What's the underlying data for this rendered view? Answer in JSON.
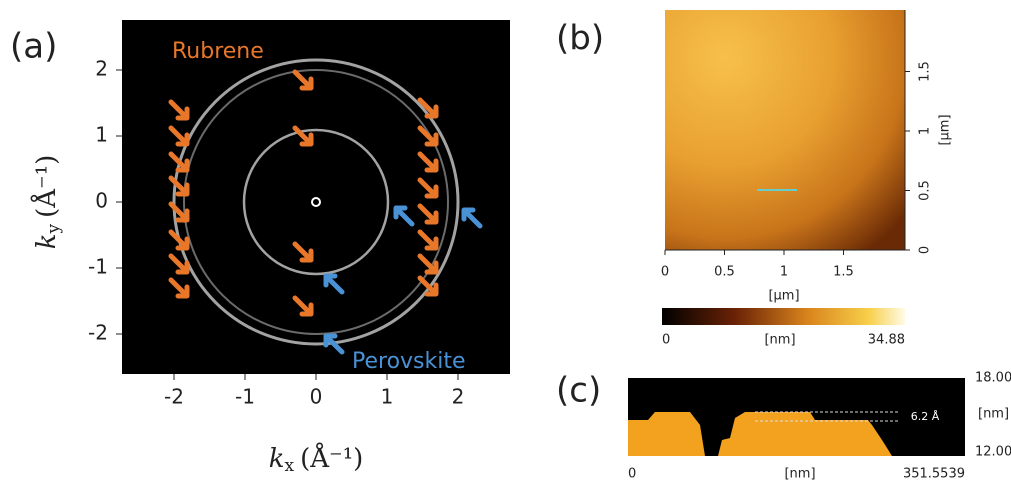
{
  "panel_a": {
    "label": "(a)",
    "annotation_top": "Rubrene",
    "annotation_bottom": "Perovskite",
    "x_axis": {
      "symbol": "k",
      "subscript": "x",
      "unit": "(Å⁻¹)",
      "ticks": [
        -2,
        -1,
        0,
        1,
        2
      ]
    },
    "y_axis": {
      "symbol": "k",
      "subscript": "y",
      "unit": "(Å⁻¹)",
      "ticks": [
        -2,
        -1,
        0,
        1,
        2
      ]
    }
  },
  "panel_b": {
    "label": "(b)",
    "x_axis": {
      "unit": "[µm]",
      "ticks": [
        0,
        0.5,
        1,
        1.5
      ]
    },
    "y_axis": {
      "unit": "[µm]",
      "ticks": [
        0,
        0.5,
        1,
        1.5
      ]
    },
    "colorbar": {
      "min": "0",
      "unit": "[nm]",
      "max": "34.88"
    }
  },
  "panel_c": {
    "label": "(c)",
    "y_max": "18.00",
    "y_unit": "[nm]",
    "y_min": "12.00",
    "x_min": "0",
    "x_unit": "[nm]",
    "x_max": "351.5539",
    "step_label": "6.2 Å"
  }
}
